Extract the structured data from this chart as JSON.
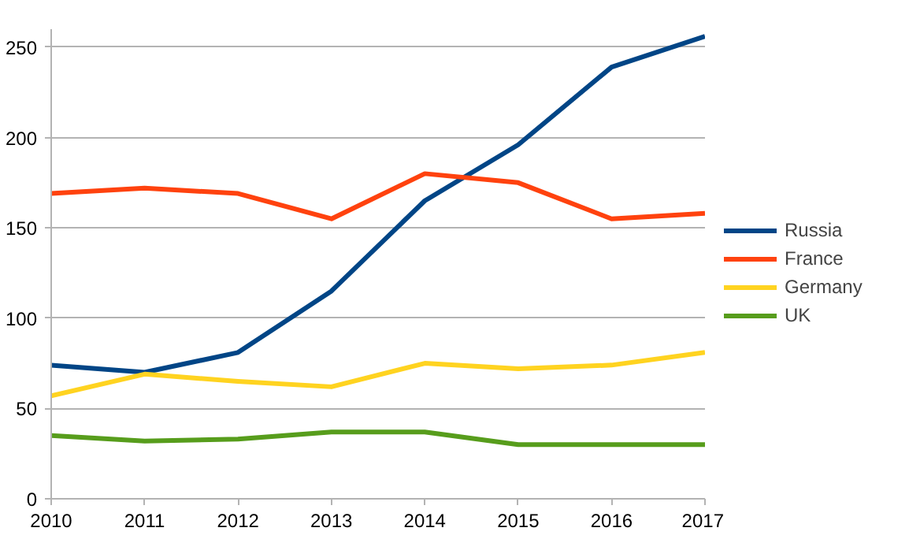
{
  "chart_data": {
    "type": "line",
    "x": [
      2010,
      2011,
      2012,
      2013,
      2014,
      2015,
      2016,
      2017
    ],
    "series": [
      {
        "name": "Russia",
        "color": "#004586",
        "values": [
          74,
          70,
          81,
          115,
          165,
          196,
          239,
          256
        ]
      },
      {
        "name": "France",
        "color": "#ff420e",
        "values": [
          169,
          172,
          169,
          155,
          180,
          175,
          155,
          158
        ]
      },
      {
        "name": "Germany",
        "color": "#ffd320",
        "values": [
          57,
          69,
          65,
          62,
          75,
          72,
          74,
          81
        ]
      },
      {
        "name": "UK",
        "color": "#579d1c",
        "values": [
          35,
          32,
          33,
          37,
          37,
          30,
          30,
          30
        ]
      }
    ],
    "xlim": [
      2010,
      2017
    ],
    "xticks": [
      2010,
      2011,
      2012,
      2013,
      2014,
      2015,
      2016,
      2017
    ],
    "ylim": [
      0,
      260
    ],
    "yticks": [
      0,
      50,
      100,
      150,
      200,
      250
    ],
    "grid": "y",
    "legend": "right",
    "marker": "none",
    "line_style": "solid"
  }
}
